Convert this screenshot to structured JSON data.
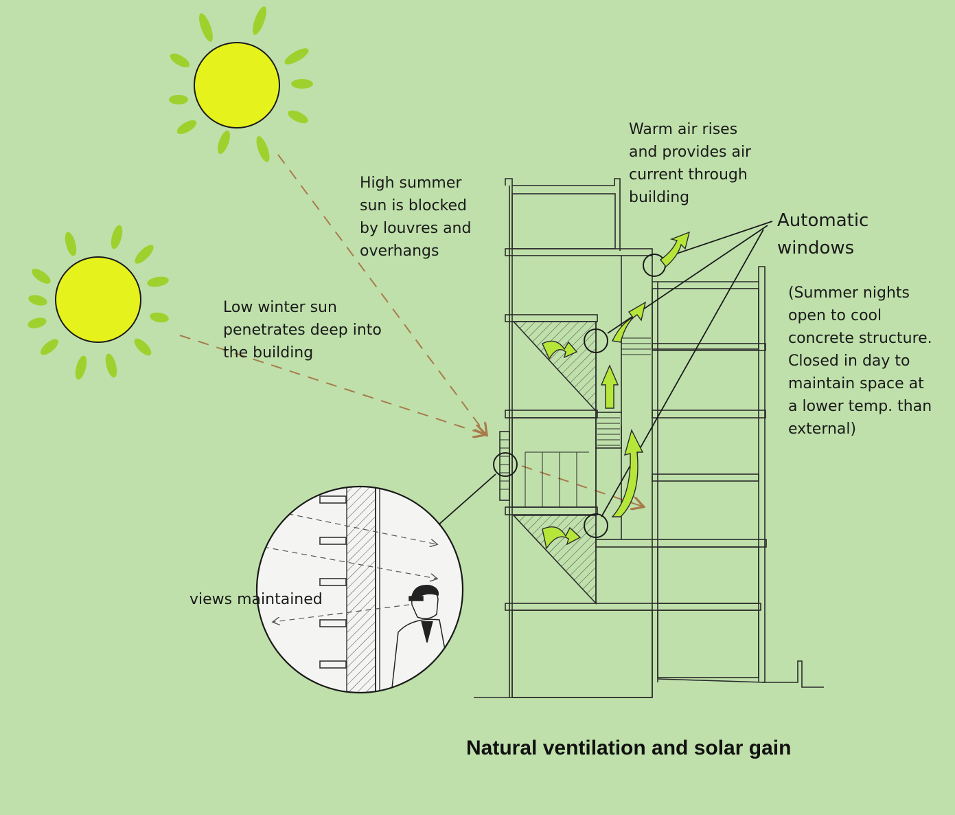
{
  "title": "Natural ventilation and solar gain",
  "labels": {
    "summer_sun": "High summer\nsun is blocked\nby louvres and\noverhangs",
    "winter_sun": "Low winter sun\npenetrates deep into\nthe building",
    "warm_air": "Warm air rises\nand provides air\ncurrent through\nbuilding",
    "automatic_windows": "Automatic\nwindows",
    "summer_nights_note": "(Summer nights\nopen to cool\nconcrete structure.\nClosed in day to\nmaintain space at\na lower temp. than\nexternal)",
    "views_maintained": "views maintained"
  },
  "colors": {
    "background": "#bfe0ab",
    "sun_fill": "#e6f21c",
    "sun_ray": "#9fd12e",
    "arrow_fill": "#b6e63a",
    "solar_path": "#a87a4a",
    "line": "#2a2a2a"
  }
}
